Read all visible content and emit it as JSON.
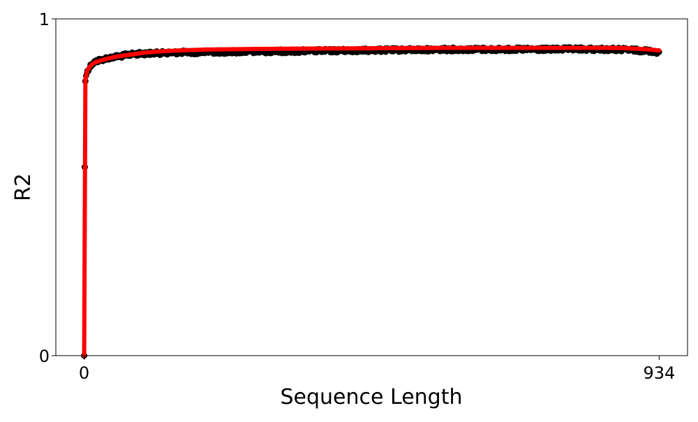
{
  "chart_data": {
    "type": "scatter",
    "title": "",
    "xlabel": "Sequence Length",
    "ylabel": "R2",
    "xlim": [
      -46,
      980
    ],
    "ylim": [
      0,
      1
    ],
    "x_ticks": [
      0,
      934
    ],
    "y_ticks": [
      0,
      1
    ],
    "x_tick_labels": [
      "0",
      "934"
    ],
    "y_tick_labels": [
      "0",
      "1"
    ],
    "grid": false,
    "legend": "none",
    "series": [
      {
        "kind": "scatter",
        "color": "#000000",
        "band_noise": 0.012,
        "points": [
          [
            0,
            0.0
          ],
          [
            1,
            0.56
          ],
          [
            2,
            0.815
          ],
          [
            3,
            0.83
          ],
          [
            4,
            0.84
          ],
          [
            6,
            0.85
          ],
          [
            8,
            0.855
          ],
          [
            10,
            0.862
          ],
          [
            13,
            0.868
          ],
          [
            16,
            0.872
          ],
          [
            20,
            0.876
          ],
          [
            25,
            0.879
          ],
          [
            30,
            0.881
          ],
          [
            40,
            0.886
          ],
          [
            50,
            0.889
          ],
          [
            60,
            0.891
          ],
          [
            70,
            0.895
          ],
          [
            80,
            0.897
          ],
          [
            100,
            0.899
          ],
          [
            120,
            0.9
          ],
          [
            140,
            0.901
          ],
          [
            160,
            0.902
          ],
          [
            180,
            0.902
          ],
          [
            200,
            0.903
          ],
          [
            250,
            0.904
          ],
          [
            300,
            0.905
          ],
          [
            350,
            0.906
          ],
          [
            400,
            0.907
          ],
          [
            450,
            0.908
          ],
          [
            500,
            0.909
          ],
          [
            550,
            0.91
          ],
          [
            600,
            0.911
          ],
          [
            650,
            0.911
          ],
          [
            700,
            0.911
          ],
          [
            750,
            0.911
          ],
          [
            800,
            0.912
          ],
          [
            850,
            0.911
          ],
          [
            880,
            0.91
          ],
          [
            900,
            0.908
          ],
          [
            920,
            0.906
          ],
          [
            934,
            0.902
          ]
        ]
      },
      {
        "kind": "line",
        "color": "#ff0000",
        "points": [
          [
            0,
            0.0
          ],
          [
            2,
            0.82
          ],
          [
            5,
            0.846
          ],
          [
            10,
            0.86
          ],
          [
            15,
            0.868
          ],
          [
            20,
            0.872
          ],
          [
            30,
            0.878
          ],
          [
            40,
            0.883
          ],
          [
            50,
            0.887
          ],
          [
            60,
            0.89
          ],
          [
            80,
            0.895
          ],
          [
            100,
            0.9
          ],
          [
            120,
            0.903
          ],
          [
            150,
            0.906
          ],
          [
            200,
            0.909
          ],
          [
            250,
            0.91
          ],
          [
            300,
            0.911
          ],
          [
            400,
            0.912
          ],
          [
            500,
            0.913
          ],
          [
            600,
            0.914
          ],
          [
            700,
            0.914
          ],
          [
            800,
            0.914
          ],
          [
            850,
            0.914
          ],
          [
            880,
            0.913
          ],
          [
            900,
            0.911
          ],
          [
            920,
            0.909
          ],
          [
            934,
            0.906
          ]
        ]
      }
    ]
  }
}
